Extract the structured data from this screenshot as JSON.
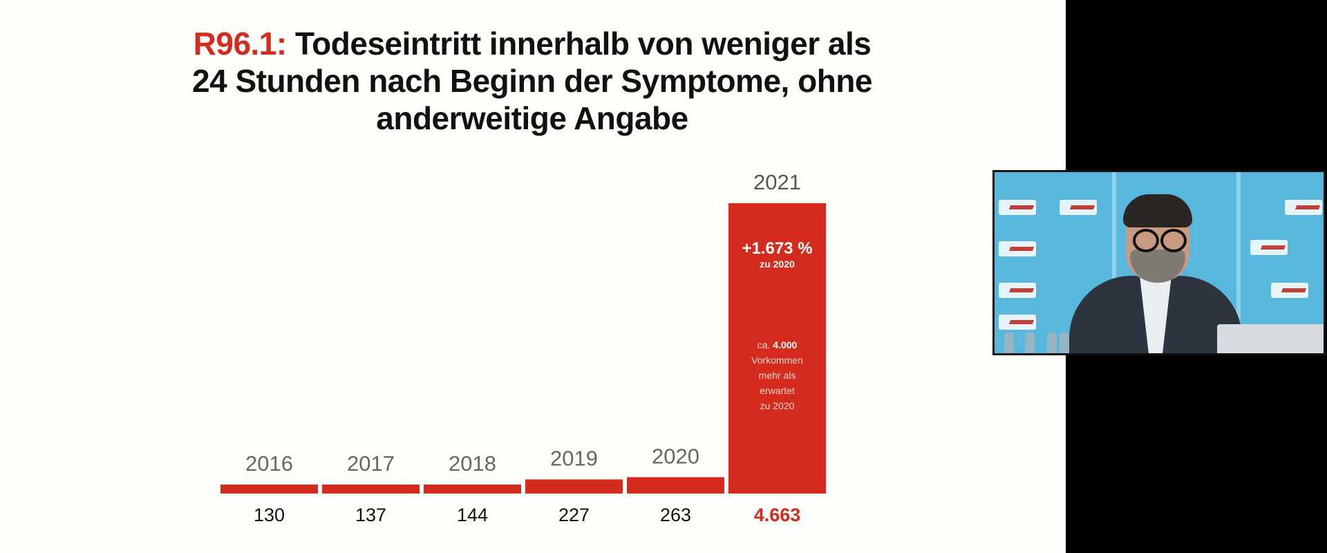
{
  "title": {
    "code": "R96.1:",
    "line1_rest": " Todeseintritt innerhalb von weniger als",
    "line2": "24 Stunden nach Beginn der Symptome, ohne",
    "line3": "anderweitige Angabe"
  },
  "chart_data": {
    "type": "bar",
    "categories": [
      "2016",
      "2017",
      "2018",
      "2019",
      "2020",
      "2021"
    ],
    "values": [
      130,
      137,
      144,
      227,
      263,
      4663
    ],
    "value_labels": [
      "130",
      "137",
      "144",
      "227",
      "263",
      "4.663"
    ],
    "highlight_index": 5,
    "annotation_change": "+1.673 %",
    "annotation_change_sub": "zu 2020",
    "annotation_excess_prefix": "ca. ",
    "annotation_excess_value": "4.000",
    "annotation_excess_lines": [
      "Vorkommen",
      "mehr als",
      "erwartet",
      "zu 2020"
    ],
    "grid": false,
    "legend": "none"
  },
  "colors": {
    "accent": "#d52b1e",
    "category_label": "#666666",
    "value_label": "#111111",
    "background": "#fdfdf9"
  },
  "webcam": {
    "icon": "webcam-feed-icon"
  }
}
